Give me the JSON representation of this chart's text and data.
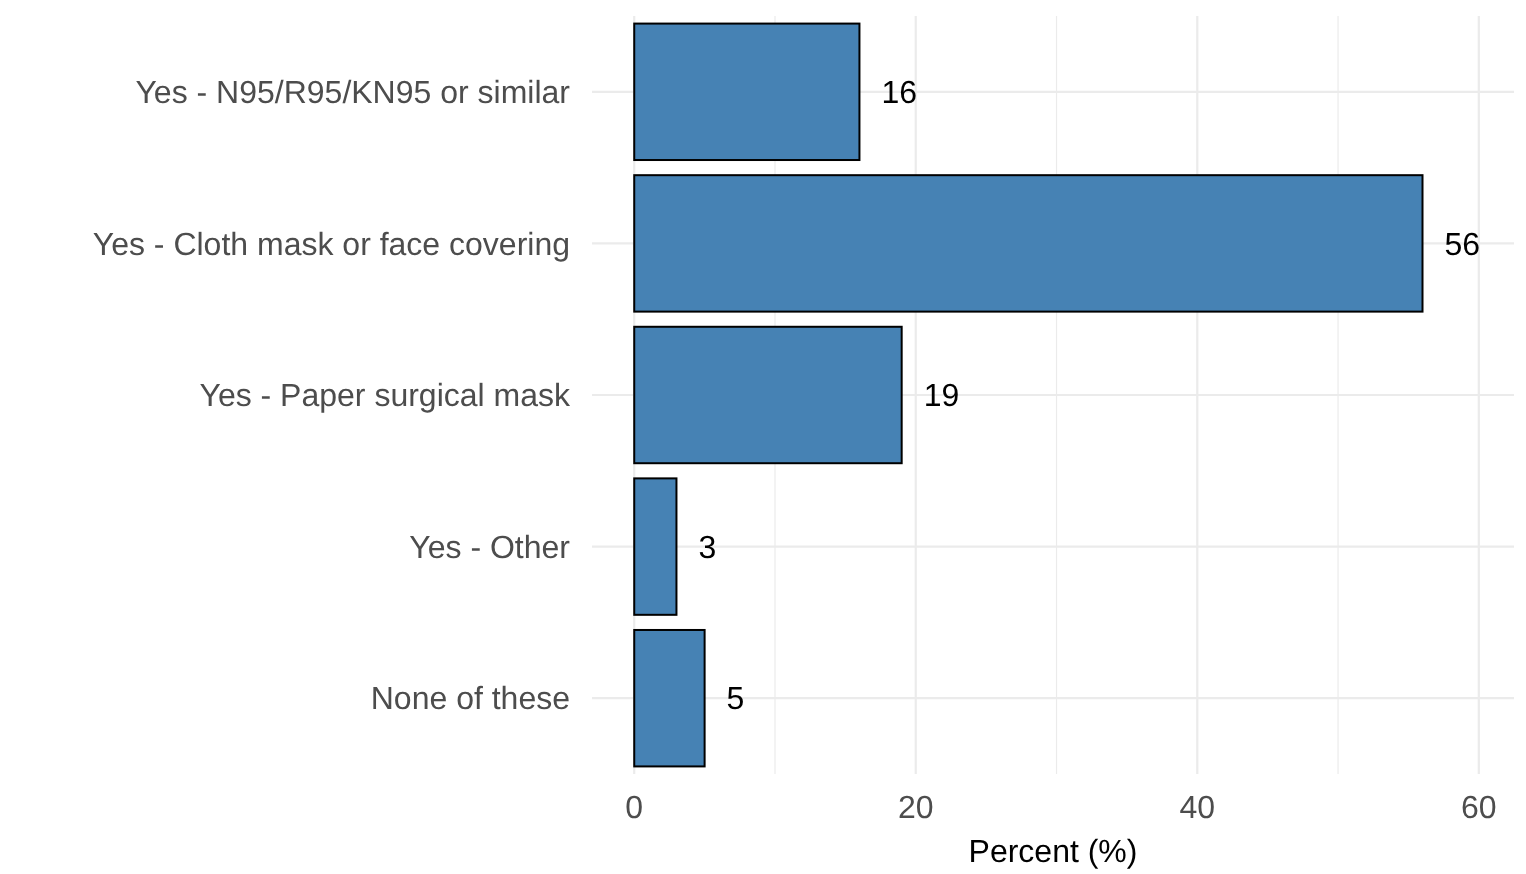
{
  "chart_data": {
    "type": "bar",
    "orientation": "horizontal",
    "xlabel": "Percent (%)",
    "categories": [
      "Yes - N95/R95/KN95 or similar",
      "Yes - Cloth mask or face covering",
      "Yes - Paper surgical mask",
      "Yes - Other",
      "None of these"
    ],
    "values": [
      16,
      56,
      19,
      3,
      5
    ],
    "color": "#4682b4",
    "data_labels": true,
    "xlim": [
      -3,
      62.5
    ],
    "xticks": [
      0,
      {
        "value": 10,
        "label": null
      },
      20,
      {
        "value": 30,
        "label": null
      },
      40,
      {
        "value": 50,
        "label": null
      },
      60
    ],
    "grid": true
  }
}
